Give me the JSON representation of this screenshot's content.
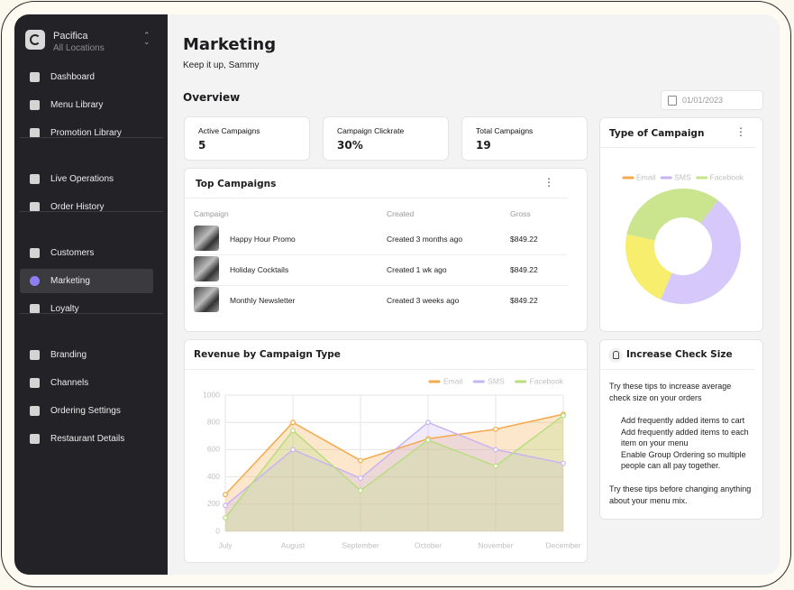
{
  "sidebar": {
    "brand": "Pacifica",
    "location": "All Locations",
    "nav": [
      [
        {
          "label": "Dashboard"
        },
        {
          "label": "Menu Library"
        },
        {
          "label": "Promotion Library"
        }
      ],
      [
        {
          "label": "Live Operations"
        },
        {
          "label": "Order History"
        }
      ],
      [
        {
          "label": "Customers"
        },
        {
          "label": "Marketing",
          "active": true
        },
        {
          "label": "Loyalty"
        }
      ],
      [
        {
          "label": "Branding"
        },
        {
          "label": "Channels"
        },
        {
          "label": "Ordering Settings"
        },
        {
          "label": "Restaurant Details"
        }
      ]
    ]
  },
  "header": {
    "title": "Marketing",
    "subtitle": "Keep it up, Sammy",
    "section": "Overview",
    "date": "01/01/2023"
  },
  "stats": [
    {
      "label": "Active Campaigns",
      "value": "5"
    },
    {
      "label": "Campaign Clickrate",
      "value": "30%"
    },
    {
      "label": "Total Campaigns",
      "value": "19"
    }
  ],
  "top_campaigns": {
    "title": "Top Campaigns",
    "columns": [
      "Campaign",
      "Created",
      "Gross"
    ],
    "rows": [
      [
        "Happy Hour Promo",
        "Created 3 months ago",
        "$849.22"
      ],
      [
        "Holiday Cocktails",
        "Created 1 wk ago",
        "$849.22"
      ],
      [
        "Monthly Newsletter",
        "Created 3 weeks ago",
        "$849.22"
      ]
    ]
  },
  "revenue_chart": {
    "type": "line",
    "title": "Revenue by Campaign Type",
    "categories": [
      "July",
      "August",
      "September",
      "October",
      "November",
      "December"
    ],
    "series": [
      {
        "name": "Email",
        "color": "#f4a94a",
        "values": [
          270,
          800,
          520,
          680,
          750,
          860
        ]
      },
      {
        "name": "SMS",
        "color": "#c8b4f2",
        "values": [
          190,
          600,
          390,
          800,
          600,
          500
        ]
      },
      {
        "name": "Facebook",
        "color": "#b8dd7f",
        "values": [
          100,
          740,
          300,
          670,
          480,
          850
        ]
      }
    ],
    "ylim": [
      0,
      1000
    ],
    "yticks": [
      0,
      200,
      400,
      600,
      800,
      1000
    ],
    "grid": true,
    "legend": "top-right"
  },
  "campaign_type_chart": {
    "type": "pie",
    "title": "Type of Campaign",
    "series": [
      {
        "name": "Email",
        "color": "#f8ee6e",
        "legend_color": "#f4a94a",
        "value": 22
      },
      {
        "name": "SMS",
        "color": "#d6c8fb",
        "legend_color": "#c8b4f2",
        "value": 46
      },
      {
        "name": "Facebook",
        "color": "#cbe48e",
        "legend_color": "#c6e38a",
        "value": 32
      }
    ]
  },
  "tips": {
    "title": "Increase Check Size",
    "intro": "Try these tips to increase average check size on your orders",
    "items": [
      "Add frequently added items to cart",
      "Add frequently added items to each item on your menu",
      "Enable Group Ordering so multiple people can all pay together."
    ],
    "outro": "Try these tips before changing anything about your menu mix."
  }
}
